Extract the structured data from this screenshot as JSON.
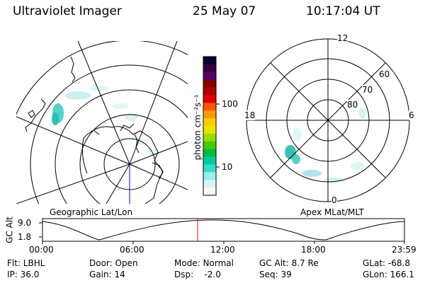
{
  "header": {
    "instrument": "Ultraviolet Imager",
    "date": "25 May 07",
    "time": "10:17:04 UT"
  },
  "left_panel": {
    "caption": "Geographic Lat/Lon"
  },
  "colorbar": {
    "unit_label": "photon cm⁻²s⁻¹",
    "ticks": [
      "100",
      "10"
    ],
    "colors": [
      "#000033",
      "#330044",
      "#550066",
      "#800000",
      "#b00000",
      "#e00000",
      "#ff5500",
      "#ff9900",
      "#ffcc00",
      "#e6e600",
      "#99dd00",
      "#44cc00",
      "#00bb44",
      "#00cc99",
      "#33ddcc",
      "#99eeee",
      "#d8f4f4",
      "#f4fafa"
    ]
  },
  "right_panel": {
    "caption": "Apex MLat/MLT",
    "mlt_labels": {
      "top": "12",
      "left": "18",
      "right": "6",
      "bottom": "0"
    },
    "mlat_labels": [
      "60",
      "70",
      "80"
    ]
  },
  "altitude_plot": {
    "ylabel": "GC Alt",
    "yticks": [
      "9.0",
      "1.8"
    ],
    "xticks": [
      "00:00",
      "06:00",
      "12:00",
      "18:00",
      "23:59"
    ],
    "marker_color": "#ff0000"
  },
  "info": {
    "flt": "Flt: LBHL",
    "ip": "IP: 36.0",
    "door": "Door: Open",
    "gain": "Gain: 14",
    "mode": "Mode: Normal",
    "dsp": "Dsp:    -2.0",
    "gcalt": "GC Alt: 8.7 Re",
    "seq": "Seq: 39",
    "glat": "GLat: -68.8",
    "glon": "GLon: 166.1"
  }
}
